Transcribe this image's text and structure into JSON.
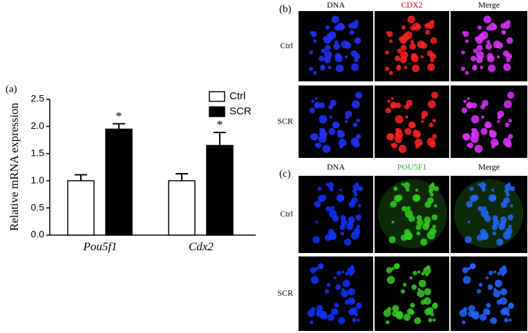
{
  "chart_data": {
    "type": "bar",
    "panel_label": "(a)",
    "ylabel": "Relative mRNA expression",
    "categories": [
      "Pou5f1",
      "Cdx2"
    ],
    "series": [
      {
        "name": "Ctrl",
        "color": "#ffffff",
        "values": [
          1.0,
          1.0
        ],
        "errors": [
          0.11,
          0.13
        ],
        "annotations": [
          null,
          null
        ]
      },
      {
        "name": "SCR",
        "color": "#000000",
        "values": [
          1.95,
          1.65
        ],
        "errors": [
          0.1,
          0.24
        ],
        "annotations": [
          "*",
          "*"
        ]
      }
    ],
    "ylim": [
      0,
      2.5
    ],
    "yticks": [
      {
        "value": 0,
        "label": "0.0"
      },
      0.5,
      {
        "value": 1,
        "label": "1.0"
      },
      1.5,
      {
        "value": 2,
        "label": "2.0"
      },
      2.5
    ],
    "legend": "top-right"
  },
  "panels": [
    {
      "label": "(b)",
      "columns": [
        "DNA",
        "CDX2",
        "Merge"
      ],
      "rows": [
        "Ctrl",
        "SCR"
      ]
    },
    {
      "label": "(c)",
      "columns": [
        "DNA",
        "POU5F1",
        "Merge"
      ],
      "rows": [
        "Ctrl",
        "SCR"
      ]
    }
  ]
}
